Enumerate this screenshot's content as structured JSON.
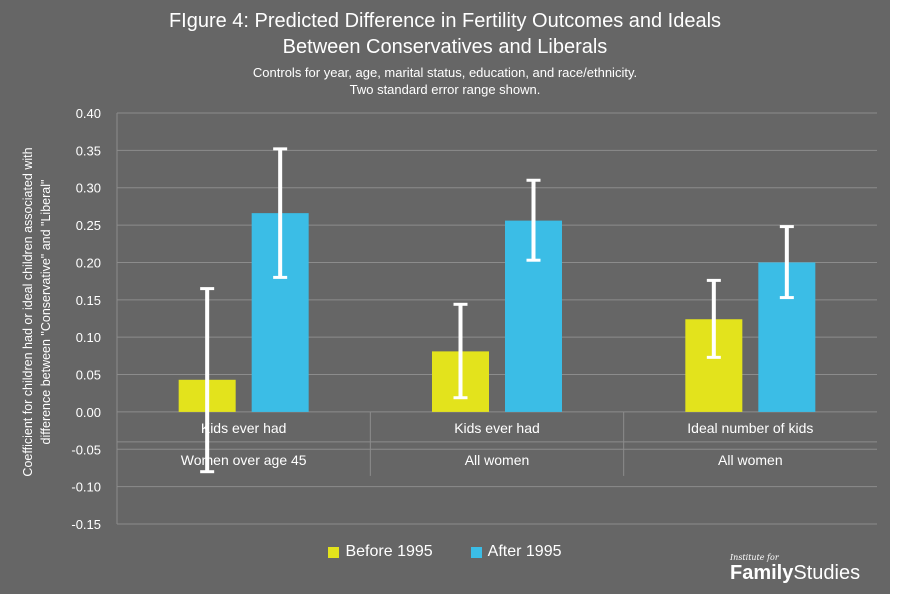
{
  "chart_data": {
    "type": "bar",
    "title_line1": "FIgure 4: Predicted Difference in Fertility Outcomes and Ideals",
    "title_line2": "Between Conservatives and Liberals",
    "subtitle_line1": "Controls for year, age, marital status, education, and race/ethnicity.",
    "subtitle_line2": "Two standard error range shown.",
    "ylabel_line1": "Coefficient for children had or ideal children associated with",
    "ylabel_line2": "difference between \"Conservative\" and \"Liberal\"",
    "ylim": [
      -0.15,
      0.4
    ],
    "yticks": [
      0.4,
      0.35,
      0.3,
      0.25,
      0.2,
      0.15,
      0.1,
      0.05,
      0.0,
      -0.05,
      -0.1,
      -0.15
    ],
    "grid": true,
    "legend_position": "bottom",
    "categories": [
      {
        "label": "Kids ever had",
        "group": "Women over age 45"
      },
      {
        "label": "Kids ever had",
        "group": "All women"
      },
      {
        "label": "Ideal number of kids",
        "group": "All women"
      }
    ],
    "series": [
      {
        "name": "Before 1995",
        "color": "#e3e31c",
        "values": [
          0.043,
          0.081,
          0.124
        ],
        "err_low": [
          -0.08,
          0.019,
          0.073
        ],
        "err_high": [
          0.165,
          0.144,
          0.176
        ]
      },
      {
        "name": "After 1995",
        "color": "#3bbde6",
        "values": [
          0.266,
          0.256,
          0.2
        ],
        "err_low": [
          0.18,
          0.203,
          0.153
        ],
        "err_high": [
          0.352,
          0.31,
          0.248
        ]
      }
    ]
  },
  "branding": {
    "small": "Institute for",
    "bold": "Family",
    "light": "Studies"
  }
}
